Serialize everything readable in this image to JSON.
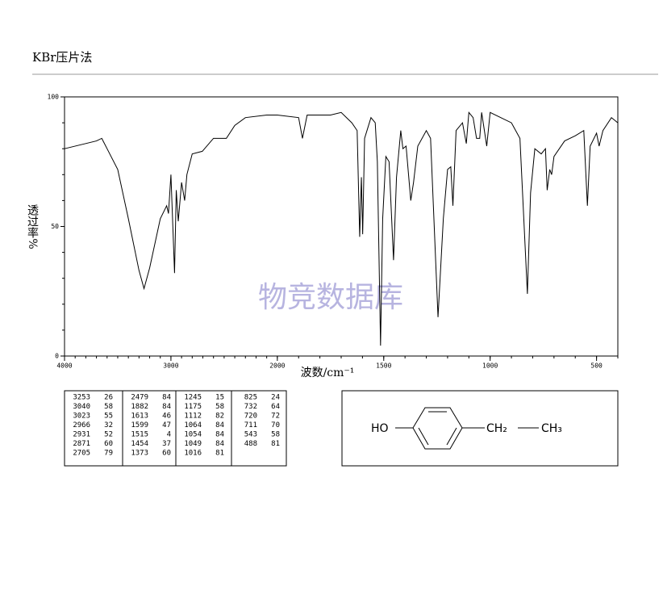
{
  "header": {
    "title": "KBr压片法"
  },
  "chart_data": {
    "type": "line",
    "x_label": "波数/cm⁻¹",
    "y_label": "透过率%",
    "watermark": "物竞数据库",
    "xlim": [
      4000,
      400
    ],
    "x_scale_break": {
      "at": 2000,
      "factor": 2
    },
    "xticks": [
      4000,
      3000,
      2000,
      1500,
      1000,
      500
    ],
    "xminor_step": 100,
    "ylim": [
      0,
      100
    ],
    "yticks": [
      0,
      50,
      100
    ],
    "yminor_step": 10,
    "x": [
      4000,
      3700,
      3650,
      3600,
      3500,
      3400,
      3300,
      3253,
      3200,
      3100,
      3040,
      3023,
      3000,
      2966,
      2950,
      2931,
      2900,
      2871,
      2850,
      2800,
      2705,
      2600,
      2479,
      2400,
      2300,
      2100,
      2000,
      1900,
      1882,
      1860,
      1750,
      1700,
      1650,
      1625,
      1613,
      1605,
      1599,
      1590,
      1560,
      1540,
      1530,
      1515,
      1505,
      1490,
      1475,
      1454,
      1440,
      1420,
      1410,
      1395,
      1373,
      1360,
      1340,
      1300,
      1280,
      1245,
      1220,
      1200,
      1185,
      1175,
      1160,
      1130,
      1112,
      1100,
      1080,
      1064,
      1054,
      1049,
      1040,
      1016,
      1000,
      950,
      900,
      860,
      825,
      810,
      790,
      760,
      740,
      732,
      720,
      711,
      700,
      650,
      600,
      560,
      543,
      530,
      500,
      488,
      470,
      430,
      400
    ],
    "series": [
      {
        "color": "#000000",
        "values": [
          80,
          83,
          84,
          80,
          72,
          53,
          33,
          26,
          34,
          53,
          58,
          55,
          70,
          32,
          64,
          52,
          67,
          60,
          70,
          78,
          79,
          84,
          84,
          89,
          92,
          93,
          93,
          92,
          84,
          93,
          93,
          94,
          90,
          87,
          46,
          69,
          47,
          84,
          92,
          90,
          75,
          4,
          53,
          77,
          75,
          37,
          69,
          87,
          80,
          81,
          60,
          67,
          81,
          87,
          84,
          15,
          53,
          72,
          73,
          58,
          87,
          90,
          82,
          94,
          92,
          84,
          84,
          84,
          94,
          81,
          94,
          92,
          90,
          84,
          24,
          63,
          80,
          78,
          80,
          64,
          72,
          70,
          77,
          83,
          85,
          87,
          58,
          81,
          86,
          81,
          87,
          92,
          90
        ]
      }
    ]
  },
  "peak_table": [
    [
      [
        3253,
        26
      ],
      [
        3040,
        58
      ],
      [
        3023,
        55
      ],
      [
        2966,
        32
      ],
      [
        2931,
        52
      ],
      [
        2871,
        60
      ],
      [
        2705,
        79
      ]
    ],
    [
      [
        2479,
        84
      ],
      [
        1882,
        84
      ],
      [
        1613,
        46
      ],
      [
        1599,
        47
      ],
      [
        1515,
        4
      ],
      [
        1454,
        37
      ],
      [
        1373,
        60
      ]
    ],
    [
      [
        1245,
        15
      ],
      [
        1175,
        58
      ],
      [
        1112,
        82
      ],
      [
        1064,
        84
      ],
      [
        1054,
        84
      ],
      [
        1049,
        84
      ],
      [
        1016,
        81
      ]
    ],
    [
      [
        825,
        24
      ],
      [
        732,
        64
      ],
      [
        720,
        72
      ],
      [
        711,
        70
      ],
      [
        543,
        58
      ],
      [
        488,
        81
      ]
    ]
  ],
  "structure": {
    "left": "HO",
    "middle": "CH₂",
    "right": "CH₃"
  }
}
